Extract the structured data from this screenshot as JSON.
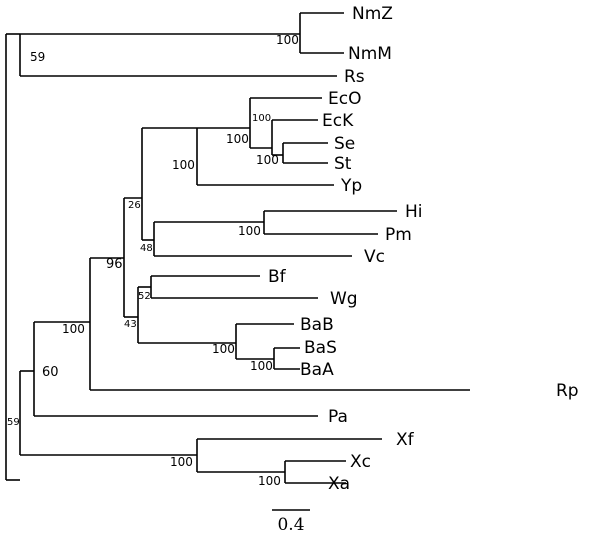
{
  "taxa": {
    "NmZ": "NmZ",
    "NmM": "NmM",
    "Rs": "Rs",
    "EcO": "EcO",
    "EcK": "EcK",
    "Se": "Se",
    "St": "St",
    "Yp": "Yp",
    "Hi": "Hi",
    "Pm": "Pm",
    "Vc": "Vc",
    "Bf": "Bf",
    "Wg": "Wg",
    "BaB": "BaB",
    "BaS": "BaS",
    "BaA": "BaA",
    "Rp": "Rp",
    "Pa": "Pa",
    "Xf": "Xf",
    "Xc": "Xc",
    "Xa": "Xa"
  },
  "support": {
    "nm": "100",
    "top59": "59",
    "ec": "100",
    "eck_se_st": "100",
    "se_st": "100",
    "entero": "100",
    "gamma26": "26",
    "hi_pm": "100",
    "past48": "48",
    "bf_wg": "52",
    "buchnera_grp43": "43",
    "ba_sa": "100",
    "bas_baa": "100",
    "n96": "96",
    "n100main": "100",
    "n60": "60",
    "root59": "59",
    "xantho": "100",
    "xc_xa": "100"
  },
  "scale": {
    "label": "0.4"
  }
}
